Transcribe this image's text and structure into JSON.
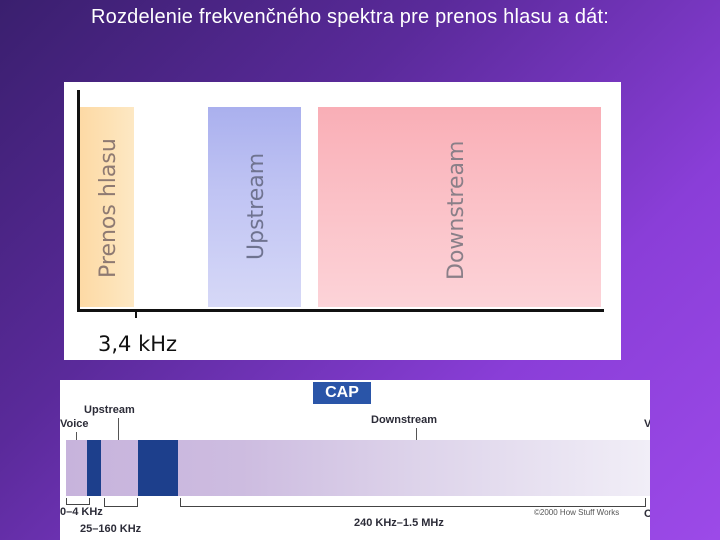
{
  "slide": {
    "title": "Rozdelenie frekvenčného spektra pre prenos hlasu a dát:"
  },
  "spectrum": {
    "voice_band": "Prenos hlasu",
    "upstream_band": "Upstream",
    "downstream_band": "Downstream",
    "frequency_marker": "3,4 kHz",
    "colors": {
      "voice": "#fdd9a4",
      "upstream": "#b6baf0",
      "downstream": "#fbbcc3"
    }
  },
  "cap_diagram": {
    "badge": "CAP",
    "upstream": "Upstream",
    "voice": "Voice",
    "downstream": "Downstream",
    "right_edge_top": "V",
    "range_voice": "0–4 KHz",
    "range_upstream": "25–160 KHz",
    "range_downstream": "240 KHz–1.5 MHz",
    "copyright": "©2000 How Stuff Works",
    "right_edge_bottom": "C",
    "colors": {
      "badge": "#2a55a8",
      "segments": "#1d3f8c"
    }
  }
}
